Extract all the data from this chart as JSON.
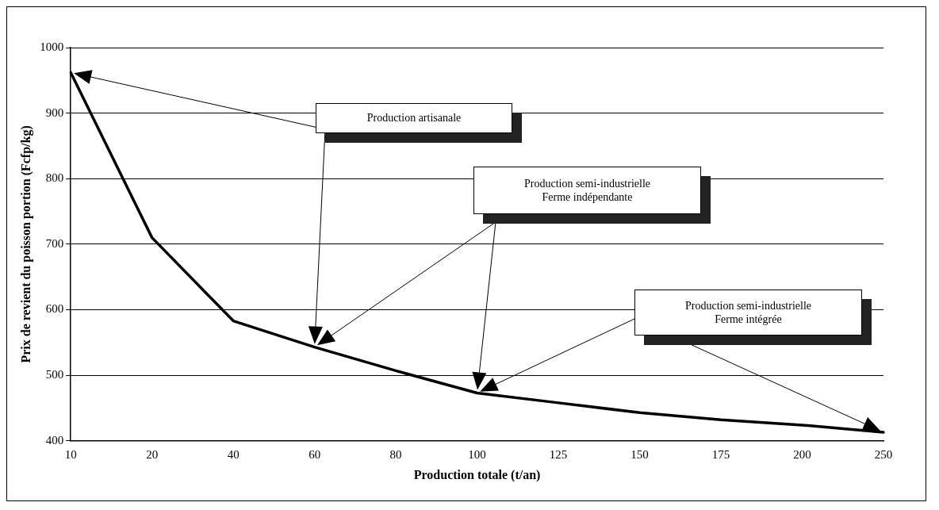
{
  "chart_data": {
    "type": "line",
    "xlabel": "Production totale (t/an)",
    "ylabel": "Prix de revient du poisson portion (Fcfp/kg)",
    "categories": [
      "10",
      "20",
      "40",
      "60",
      "80",
      "100",
      "125",
      "150",
      "175",
      "200",
      "250"
    ],
    "series": [
      {
        "color": "#000000",
        "values": [
          962,
          710,
          583,
          543,
          507,
          473,
          458,
          443,
          432,
          424,
          413
        ]
      }
    ],
    "ylim": [
      400,
      1000
    ],
    "yticks": [
      400,
      500,
      600,
      700,
      800,
      900,
      1000
    ],
    "grid": "y",
    "legend": false,
    "marker": "none",
    "line_style": "solid",
    "annotations": [
      "Production artisanale",
      "Production semi-industrielle\nFerme indépendante",
      "Production semi-industrielle\nFerme intégrée"
    ]
  }
}
